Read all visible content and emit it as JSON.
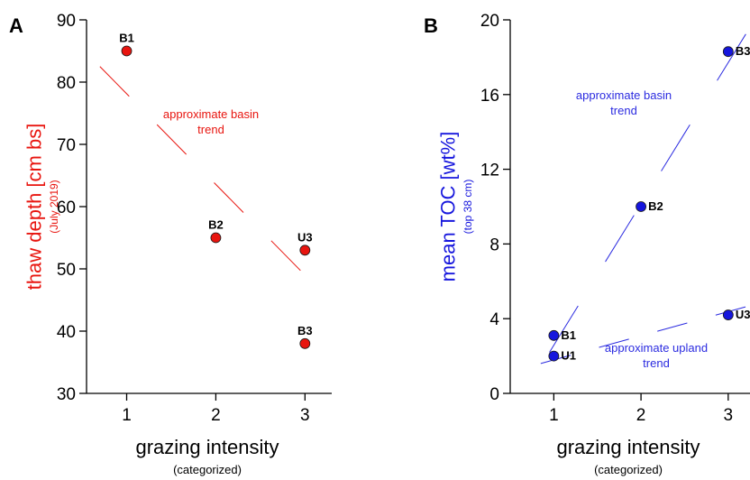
{
  "colors": {
    "red": "#e8150f",
    "blue": "#1616dd",
    "axis": "#000000",
    "trend_red": "#e8150f",
    "trend_blue": "#2b2be0"
  },
  "chart_data": [
    {
      "panel_label": "A",
      "type": "scatter",
      "xlabel": "grazing intensity",
      "xlabel_sub": "(categorized)",
      "ylabel": "thaw depth [cm bs]",
      "ylabel_sub": "(July 2019)",
      "xlim": [
        0.55,
        3.3
      ],
      "ylim": [
        30,
        90
      ],
      "xticks": [
        1,
        2,
        3
      ],
      "yticks": [
        30,
        40,
        50,
        60,
        70,
        80,
        90
      ],
      "grid": false,
      "series": [
        {
          "color": "#e8150f",
          "points": [
            {
              "label": "B1",
              "x": 1,
              "y": 85
            },
            {
              "label": "B2",
              "x": 2,
              "y": 55
            },
            {
              "label": "U3",
              "x": 3,
              "y": 53
            },
            {
              "label": "B3",
              "x": 3,
              "y": 38
            }
          ]
        }
      ],
      "trends": [
        {
          "text": [
            "approximate basin",
            "trend"
          ],
          "from": [
            0.7,
            82.5
          ],
          "to": [
            3.0,
            49
          ],
          "color": "#e8150f"
        }
      ]
    },
    {
      "panel_label": "B",
      "type": "scatter",
      "xlabel": "grazing intensity",
      "xlabel_sub": "(categorized)",
      "ylabel": "mean TOC [wt%]",
      "ylabel_sub": "(top 38 cm)",
      "xlim": [
        0.5,
        3.25
      ],
      "ylim": [
        0,
        20
      ],
      "xticks": [
        1,
        2,
        3
      ],
      "yticks": [
        0,
        4,
        8,
        12,
        16,
        20
      ],
      "grid": false,
      "series": [
        {
          "color": "#1616dd",
          "points": [
            {
              "label": "B1",
              "x": 1,
              "y": 3.1
            },
            {
              "label": "U1",
              "x": 1,
              "y": 2.0
            },
            {
              "label": "B2",
              "x": 2,
              "y": 10.0
            },
            {
              "label": "B3",
              "x": 3,
              "y": 18.3
            },
            {
              "label": "U3",
              "x": 3,
              "y": 4.2
            }
          ]
        }
      ],
      "trends": [
        {
          "text": [
            "approximate basin",
            "trend"
          ],
          "from": [
            0.95,
            2.2
          ],
          "to": [
            3.25,
            19.6
          ],
          "color": "#2b2be0"
        },
        {
          "text": [
            "approximate upland",
            "trend"
          ],
          "from": [
            0.85,
            1.6
          ],
          "to": [
            3.25,
            4.7
          ],
          "color": "#2b2be0"
        }
      ]
    }
  ]
}
